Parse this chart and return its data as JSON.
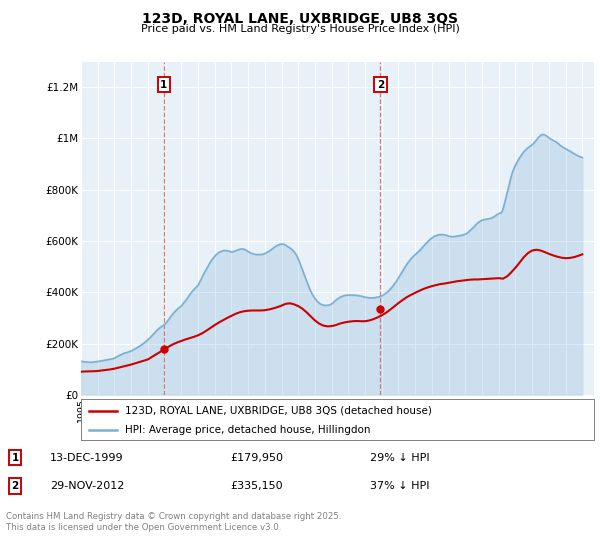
{
  "title": "123D, ROYAL LANE, UXBRIDGE, UB8 3QS",
  "subtitle": "Price paid vs. HM Land Registry's House Price Index (HPI)",
  "ylabel_ticks": [
    "£0",
    "£200K",
    "£400K",
    "£600K",
    "£800K",
    "£1M",
    "£1.2M"
  ],
  "ytick_vals": [
    0,
    200000,
    400000,
    600000,
    800000,
    1000000,
    1200000
  ],
  "ylim": [
    0,
    1300000
  ],
  "xlim_start": 1995.0,
  "xlim_end": 2025.7,
  "hpi_color": "#7bafd4",
  "price_color": "#cc0000",
  "background_color": "#e8f0f8",
  "sale1_x": 1999.96,
  "sale1_y": 179950,
  "sale1_label": "1",
  "sale1_date": "13-DEC-1999",
  "sale1_price": "£179,950",
  "sale1_info": "29% ↓ HPI",
  "sale2_x": 2012.92,
  "sale2_y": 335150,
  "sale2_label": "2",
  "sale2_date": "29-NOV-2012",
  "sale2_price": "£335,150",
  "sale2_info": "37% ↓ HPI",
  "legend_line1": "123D, ROYAL LANE, UXBRIDGE, UB8 3QS (detached house)",
  "legend_line2": "HPI: Average price, detached house, Hillingdon",
  "footer": "Contains HM Land Registry data © Crown copyright and database right 2025.\nThis data is licensed under the Open Government Licence v3.0.",
  "hpi_data_x": [
    1995.0,
    1995.083,
    1995.167,
    1995.25,
    1995.333,
    1995.417,
    1995.5,
    1995.583,
    1995.667,
    1995.75,
    1995.833,
    1995.917,
    1996.0,
    1996.083,
    1996.167,
    1996.25,
    1996.333,
    1996.417,
    1996.5,
    1996.583,
    1996.667,
    1996.75,
    1996.833,
    1996.917,
    1997.0,
    1997.083,
    1997.167,
    1997.25,
    1997.333,
    1997.417,
    1997.5,
    1997.583,
    1997.667,
    1997.75,
    1997.833,
    1997.917,
    1998.0,
    1998.083,
    1998.167,
    1998.25,
    1998.333,
    1998.417,
    1998.5,
    1998.583,
    1998.667,
    1998.75,
    1998.833,
    1998.917,
    1999.0,
    1999.083,
    1999.167,
    1999.25,
    1999.333,
    1999.417,
    1999.5,
    1999.583,
    1999.667,
    1999.75,
    1999.833,
    1999.917,
    2000.0,
    2000.083,
    2000.167,
    2000.25,
    2000.333,
    2000.417,
    2000.5,
    2000.583,
    2000.667,
    2000.75,
    2000.833,
    2000.917,
    2001.0,
    2001.083,
    2001.167,
    2001.25,
    2001.333,
    2001.417,
    2001.5,
    2001.583,
    2001.667,
    2001.75,
    2001.833,
    2001.917,
    2002.0,
    2002.083,
    2002.167,
    2002.25,
    2002.333,
    2002.417,
    2002.5,
    2002.583,
    2002.667,
    2002.75,
    2002.833,
    2002.917,
    2003.0,
    2003.083,
    2003.167,
    2003.25,
    2003.333,
    2003.417,
    2003.5,
    2003.583,
    2003.667,
    2003.75,
    2003.833,
    2003.917,
    2004.0,
    2004.083,
    2004.167,
    2004.25,
    2004.333,
    2004.417,
    2004.5,
    2004.583,
    2004.667,
    2004.75,
    2004.833,
    2004.917,
    2005.0,
    2005.083,
    2005.167,
    2005.25,
    2005.333,
    2005.417,
    2005.5,
    2005.583,
    2005.667,
    2005.75,
    2005.833,
    2005.917,
    2006.0,
    2006.083,
    2006.167,
    2006.25,
    2006.333,
    2006.417,
    2006.5,
    2006.583,
    2006.667,
    2006.75,
    2006.833,
    2006.917,
    2007.0,
    2007.083,
    2007.167,
    2007.25,
    2007.333,
    2007.417,
    2007.5,
    2007.583,
    2007.667,
    2007.75,
    2007.833,
    2007.917,
    2008.0,
    2008.083,
    2008.167,
    2008.25,
    2008.333,
    2008.417,
    2008.5,
    2008.583,
    2008.667,
    2008.75,
    2008.833,
    2008.917,
    2009.0,
    2009.083,
    2009.167,
    2009.25,
    2009.333,
    2009.417,
    2009.5,
    2009.583,
    2009.667,
    2009.75,
    2009.833,
    2009.917,
    2010.0,
    2010.083,
    2010.167,
    2010.25,
    2010.333,
    2010.417,
    2010.5,
    2010.583,
    2010.667,
    2010.75,
    2010.833,
    2010.917,
    2011.0,
    2011.083,
    2011.167,
    2011.25,
    2011.333,
    2011.417,
    2011.5,
    2011.583,
    2011.667,
    2011.75,
    2011.833,
    2011.917,
    2012.0,
    2012.083,
    2012.167,
    2012.25,
    2012.333,
    2012.417,
    2012.5,
    2012.583,
    2012.667,
    2012.75,
    2012.833,
    2012.917,
    2013.0,
    2013.083,
    2013.167,
    2013.25,
    2013.333,
    2013.417,
    2013.5,
    2013.583,
    2013.667,
    2013.75,
    2013.833,
    2013.917,
    2014.0,
    2014.083,
    2014.167,
    2014.25,
    2014.333,
    2014.417,
    2014.5,
    2014.583,
    2014.667,
    2014.75,
    2014.833,
    2014.917,
    2015.0,
    2015.083,
    2015.167,
    2015.25,
    2015.333,
    2015.417,
    2015.5,
    2015.583,
    2015.667,
    2015.75,
    2015.833,
    2015.917,
    2016.0,
    2016.083,
    2016.167,
    2016.25,
    2016.333,
    2016.417,
    2016.5,
    2016.583,
    2016.667,
    2016.75,
    2016.833,
    2016.917,
    2017.0,
    2017.083,
    2017.167,
    2017.25,
    2017.333,
    2017.417,
    2017.5,
    2017.583,
    2017.667,
    2017.75,
    2017.833,
    2017.917,
    2018.0,
    2018.083,
    2018.167,
    2018.25,
    2018.333,
    2018.417,
    2018.5,
    2018.583,
    2018.667,
    2018.75,
    2018.833,
    2018.917,
    2019.0,
    2019.083,
    2019.167,
    2019.25,
    2019.333,
    2019.417,
    2019.5,
    2019.583,
    2019.667,
    2019.75,
    2019.833,
    2019.917,
    2020.0,
    2020.083,
    2020.167,
    2020.25,
    2020.333,
    2020.417,
    2020.5,
    2020.583,
    2020.667,
    2020.75,
    2020.833,
    2020.917,
    2021.0,
    2021.083,
    2021.167,
    2021.25,
    2021.333,
    2021.417,
    2021.5,
    2021.583,
    2021.667,
    2021.75,
    2021.833,
    2021.917,
    2022.0,
    2022.083,
    2022.167,
    2022.25,
    2022.333,
    2022.417,
    2022.5,
    2022.583,
    2022.667,
    2022.75,
    2022.833,
    2022.917,
    2023.0,
    2023.083,
    2023.167,
    2023.25,
    2023.333,
    2023.417,
    2023.5,
    2023.583,
    2023.667,
    2023.75,
    2023.833,
    2023.917,
    2024.0,
    2024.083,
    2024.167,
    2024.25,
    2024.333,
    2024.417,
    2024.5,
    2024.583,
    2024.667,
    2024.75,
    2024.833,
    2024.917,
    2025.0
  ],
  "hpi_data_y": [
    131000,
    130000,
    129000,
    128000,
    128000,
    128000,
    127000,
    127000,
    127000,
    128000,
    129000,
    129000,
    130000,
    131000,
    132000,
    133000,
    134000,
    135000,
    136000,
    137000,
    138000,
    139000,
    140000,
    141000,
    143000,
    146000,
    149000,
    152000,
    155000,
    157000,
    160000,
    162000,
    164000,
    165000,
    167000,
    169000,
    171000,
    174000,
    177000,
    180000,
    183000,
    186000,
    189000,
    193000,
    197000,
    201000,
    205000,
    210000,
    215000,
    220000,
    225000,
    231000,
    237000,
    243000,
    249000,
    254000,
    259000,
    263000,
    267000,
    270000,
    274000,
    280000,
    287000,
    294000,
    302000,
    309000,
    316000,
    322000,
    328000,
    333000,
    338000,
    342000,
    346000,
    353000,
    360000,
    367000,
    374000,
    382000,
    390000,
    397000,
    404000,
    410000,
    416000,
    421000,
    427000,
    437000,
    448000,
    459000,
    470000,
    480000,
    490000,
    500000,
    510000,
    519000,
    527000,
    534000,
    540000,
    546000,
    551000,
    555000,
    558000,
    560000,
    562000,
    563000,
    563000,
    562000,
    561000,
    559000,
    557000,
    558000,
    560000,
    562000,
    564000,
    566000,
    568000,
    569000,
    569000,
    568000,
    566000,
    563000,
    559000,
    556000,
    553000,
    551000,
    549000,
    548000,
    547000,
    547000,
    547000,
    547000,
    548000,
    549000,
    551000,
    554000,
    557000,
    560000,
    564000,
    568000,
    572000,
    576000,
    580000,
    583000,
    585000,
    587000,
    588000,
    588000,
    587000,
    584000,
    580000,
    576000,
    573000,
    569000,
    564000,
    558000,
    550000,
    542000,
    530000,
    517000,
    502000,
    487000,
    472000,
    458000,
    444000,
    430000,
    416000,
    404000,
    393000,
    384000,
    376000,
    369000,
    363000,
    358000,
    354000,
    352000,
    350000,
    349000,
    349000,
    349000,
    350000,
    352000,
    355000,
    359000,
    364000,
    369000,
    373000,
    377000,
    380000,
    383000,
    385000,
    387000,
    388000,
    389000,
    389000,
    389000,
    389000,
    389000,
    389000,
    388000,
    388000,
    387000,
    386000,
    385000,
    384000,
    382000,
    381000,
    380000,
    379000,
    378000,
    378000,
    378000,
    378000,
    379000,
    380000,
    381000,
    382000,
    384000,
    386000,
    389000,
    393000,
    397000,
    401000,
    406000,
    412000,
    418000,
    425000,
    432000,
    439000,
    447000,
    456000,
    465000,
    474000,
    483000,
    492000,
    501000,
    509000,
    517000,
    524000,
    531000,
    537000,
    542000,
    547000,
    552000,
    557000,
    562000,
    568000,
    574000,
    580000,
    586000,
    592000,
    597000,
    603000,
    608000,
    612000,
    616000,
    619000,
    621000,
    623000,
    624000,
    625000,
    625000,
    625000,
    624000,
    623000,
    621000,
    619000,
    618000,
    617000,
    617000,
    617000,
    618000,
    619000,
    620000,
    621000,
    622000,
    623000,
    625000,
    627000,
    630000,
    634000,
    639000,
    644000,
    649000,
    654000,
    660000,
    666000,
    671000,
    675000,
    678000,
    681000,
    683000,
    684000,
    685000,
    686000,
    687000,
    688000,
    690000,
    693000,
    696000,
    700000,
    704000,
    707000,
    709000,
    711000,
    724000,
    744000,
    766000,
    789000,
    811000,
    833000,
    853000,
    870000,
    884000,
    896000,
    906000,
    916000,
    925000,
    933000,
    941000,
    948000,
    954000,
    959000,
    964000,
    968000,
    972000,
    976000,
    981000,
    987000,
    994000,
    1001000,
    1007000,
    1012000,
    1015000,
    1016000,
    1014000,
    1011000,
    1007000,
    1003000,
    999000,
    996000,
    993000,
    990000,
    987000,
    983000,
    979000,
    974000,
    970000,
    966000,
    963000,
    960000,
    957000,
    954000,
    951000,
    948000,
    944000,
    941000,
    938000,
    935000,
    932000,
    930000,
    928000,
    926000
  ],
  "price_data_x": [
    1995.0,
    1995.25,
    1995.5,
    1995.75,
    1996.0,
    1996.25,
    1996.5,
    1996.75,
    1997.0,
    1997.25,
    1997.5,
    1997.75,
    1998.0,
    1998.25,
    1998.5,
    1998.75,
    1999.0,
    1999.25,
    1999.5,
    1999.75,
    2000.0,
    2000.25,
    2000.5,
    2000.75,
    2001.0,
    2001.25,
    2001.5,
    2001.75,
    2002.0,
    2002.25,
    2002.5,
    2002.75,
    2003.0,
    2003.25,
    2003.5,
    2003.75,
    2004.0,
    2004.25,
    2004.5,
    2004.75,
    2005.0,
    2005.25,
    2005.5,
    2005.75,
    2006.0,
    2006.25,
    2006.5,
    2006.75,
    2007.0,
    2007.25,
    2007.5,
    2007.75,
    2008.0,
    2008.25,
    2008.5,
    2008.75,
    2009.0,
    2009.25,
    2009.5,
    2009.75,
    2010.0,
    2010.25,
    2010.5,
    2010.75,
    2011.0,
    2011.25,
    2011.5,
    2011.75,
    2012.0,
    2012.25,
    2012.5,
    2012.75,
    2013.0,
    2013.25,
    2013.5,
    2013.75,
    2014.0,
    2014.25,
    2014.5,
    2014.75,
    2015.0,
    2015.25,
    2015.5,
    2015.75,
    2016.0,
    2016.25,
    2016.5,
    2016.75,
    2017.0,
    2017.25,
    2017.5,
    2017.75,
    2018.0,
    2018.25,
    2018.5,
    2018.75,
    2019.0,
    2019.25,
    2019.5,
    2019.75,
    2020.0,
    2020.25,
    2020.5,
    2020.75,
    2021.0,
    2021.25,
    2021.5,
    2021.75,
    2022.0,
    2022.25,
    2022.5,
    2022.75,
    2023.0,
    2023.25,
    2023.5,
    2023.75,
    2024.0,
    2024.25,
    2024.5,
    2024.75,
    2025.0
  ],
  "price_data_y": [
    90000,
    91000,
    91500,
    92000,
    93000,
    95000,
    97000,
    99000,
    102000,
    106000,
    110000,
    114000,
    118000,
    123000,
    128000,
    133000,
    138000,
    148000,
    158000,
    168000,
    178000,
    188000,
    197000,
    204000,
    210000,
    216000,
    221000,
    226000,
    232000,
    240000,
    250000,
    261000,
    272000,
    282000,
    291000,
    300000,
    308000,
    316000,
    322000,
    326000,
    328000,
    329000,
    329000,
    329000,
    330000,
    333000,
    337000,
    342000,
    348000,
    355000,
    357000,
    353000,
    346000,
    336000,
    322000,
    306000,
    290000,
    278000,
    270000,
    267000,
    268000,
    272000,
    278000,
    282000,
    285000,
    287000,
    288000,
    287000,
    287000,
    290000,
    295000,
    302000,
    310000,
    320000,
    332000,
    345000,
    358000,
    370000,
    381000,
    390000,
    398000,
    406000,
    413000,
    419000,
    424000,
    428000,
    432000,
    434000,
    437000,
    440000,
    443000,
    445000,
    447000,
    449000,
    450000,
    450000,
    451000,
    452000,
    453000,
    454000,
    455000,
    453000,
    462000,
    478000,
    496000,
    516000,
    537000,
    553000,
    563000,
    566000,
    563000,
    557000,
    550000,
    544000,
    539000,
    535000,
    533000,
    534000,
    537000,
    542000,
    548000
  ]
}
